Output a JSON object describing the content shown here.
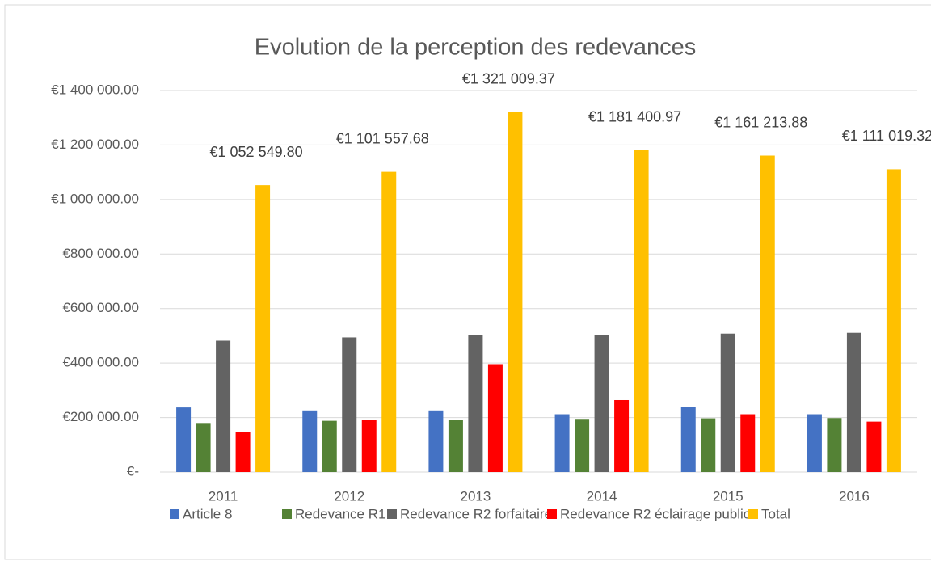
{
  "chart_data": {
    "type": "bar",
    "title": "Evolution de la perception des redevances",
    "categories": [
      "2011",
      "2012",
      "2013",
      "2014",
      "2015",
      "2016"
    ],
    "series": [
      {
        "name": "Article 8",
        "color": "#4472c4",
        "values": [
          237000,
          226000,
          226000,
          212000,
          238000,
          212000
        ]
      },
      {
        "name": "Redevance R1",
        "color": "#548235",
        "values": [
          180000,
          188000,
          192000,
          195000,
          197000,
          198000
        ]
      },
      {
        "name": "Redevance R2 forfaitaire",
        "color": "#636363",
        "values": [
          482000,
          494000,
          502000,
          504000,
          508000,
          511000
        ]
      },
      {
        "name": "Redevance R2 éclairage public",
        "color": "#ff0000",
        "values": [
          148000,
          190000,
          396000,
          264000,
          212000,
          185000
        ]
      },
      {
        "name": "Total",
        "color": "#ffc000",
        "values": [
          1052549.8,
          1101557.68,
          1321009.37,
          1181400.97,
          1161213.88,
          1111019.32
        ],
        "value_labels": [
          "€1 052 549.80",
          "€1 101 557.68",
          "€1 321 009.37",
          "€1 181 400.97",
          "€1 161 213.88",
          "€1 111 019.32"
        ]
      }
    ],
    "ylim": [
      0,
      1400000
    ],
    "yticks": [
      {
        "value": 0,
        "label": "€-"
      },
      {
        "value": 200000,
        "label": "€200 000.00"
      },
      {
        "value": 400000,
        "label": "€400 000.00"
      },
      {
        "value": 600000,
        "label": "€600 000.00"
      },
      {
        "value": 800000,
        "label": "€800 000.00"
      },
      {
        "value": 1000000,
        "label": "€1 000 000.00"
      },
      {
        "value": 1200000,
        "label": "€1 200 000.00"
      },
      {
        "value": 1400000,
        "label": "€1 400 000.00"
      }
    ],
    "grid": true,
    "legend": "bottom"
  }
}
